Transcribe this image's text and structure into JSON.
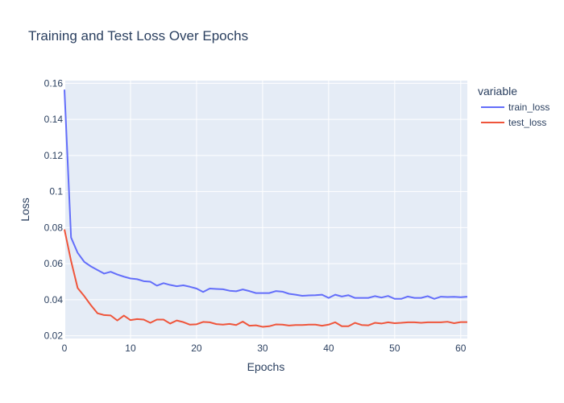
{
  "chart_data": {
    "type": "line",
    "title": "Training and Test Loss Over Epochs",
    "xlabel": "Epochs",
    "ylabel": "Loss",
    "xlim": [
      0,
      61
    ],
    "ylim": [
      0.0185,
      0.1615
    ],
    "x_ticks": [
      0,
      10,
      20,
      30,
      40,
      50,
      60
    ],
    "y_ticks": [
      0.02,
      0.04,
      0.06,
      0.08,
      0.1,
      0.12,
      0.14,
      0.16
    ],
    "y_tick_labels": [
      "0.02",
      "0.04",
      "0.06",
      "0.08",
      "0.1",
      "0.12",
      "0.14",
      "0.16"
    ],
    "grid": true,
    "plot_background": "#E5ECF6",
    "legend": {
      "title": "variable",
      "placement": "right"
    },
    "x": [
      0,
      1,
      2,
      3,
      4,
      5,
      6,
      7,
      8,
      9,
      10,
      11,
      12,
      13,
      14,
      15,
      16,
      17,
      18,
      19,
      20,
      21,
      22,
      23,
      24,
      25,
      26,
      27,
      28,
      29,
      30,
      31,
      32,
      33,
      34,
      35,
      36,
      37,
      38,
      39,
      40,
      41,
      42,
      43,
      44,
      45,
      46,
      47,
      48,
      49,
      50,
      51,
      52,
      53,
      54,
      55,
      56,
      57,
      58,
      59,
      60,
      61
    ],
    "series": [
      {
        "name": "train_loss",
        "color": "#636EFA",
        "values": [
          0.1565,
          0.0745,
          0.066,
          0.061,
          0.0585,
          0.0565,
          0.0545,
          0.0555,
          0.054,
          0.0528,
          0.0518,
          0.0514,
          0.0503,
          0.05,
          0.0478,
          0.0492,
          0.0482,
          0.0475,
          0.048,
          0.0472,
          0.0462,
          0.0443,
          0.0462,
          0.046,
          0.0458,
          0.045,
          0.0447,
          0.0457,
          0.0448,
          0.0437,
          0.0437,
          0.0437,
          0.0448,
          0.0445,
          0.0433,
          0.0428,
          0.0422,
          0.0424,
          0.0425,
          0.0428,
          0.041,
          0.0428,
          0.0418,
          0.0425,
          0.041,
          0.041,
          0.041,
          0.042,
          0.0412,
          0.0421,
          0.0405,
          0.0405,
          0.0418,
          0.041,
          0.041,
          0.042,
          0.0405,
          0.0417,
          0.0415,
          0.0416,
          0.0414,
          0.0417
        ]
      },
      {
        "name": "test_loss",
        "color": "#EF553B",
        "values": [
          0.079,
          0.0615,
          0.0465,
          0.042,
          0.037,
          0.0325,
          0.0315,
          0.0313,
          0.0285,
          0.0312,
          0.0287,
          0.0293,
          0.029,
          0.0272,
          0.029,
          0.029,
          0.0268,
          0.0285,
          0.0276,
          0.0262,
          0.0264,
          0.0277,
          0.0275,
          0.0265,
          0.0262,
          0.0266,
          0.026,
          0.0279,
          0.0256,
          0.0258,
          0.025,
          0.0253,
          0.0263,
          0.0262,
          0.0257,
          0.026,
          0.026,
          0.0262,
          0.0262,
          0.0256,
          0.0262,
          0.0275,
          0.0253,
          0.0253,
          0.0272,
          0.026,
          0.0258,
          0.0272,
          0.0268,
          0.0275,
          0.027,
          0.0272,
          0.0275,
          0.0275,
          0.0272,
          0.0275,
          0.0275,
          0.0275,
          0.0278,
          0.027,
          0.0276,
          0.0276
        ]
      }
    ]
  }
}
